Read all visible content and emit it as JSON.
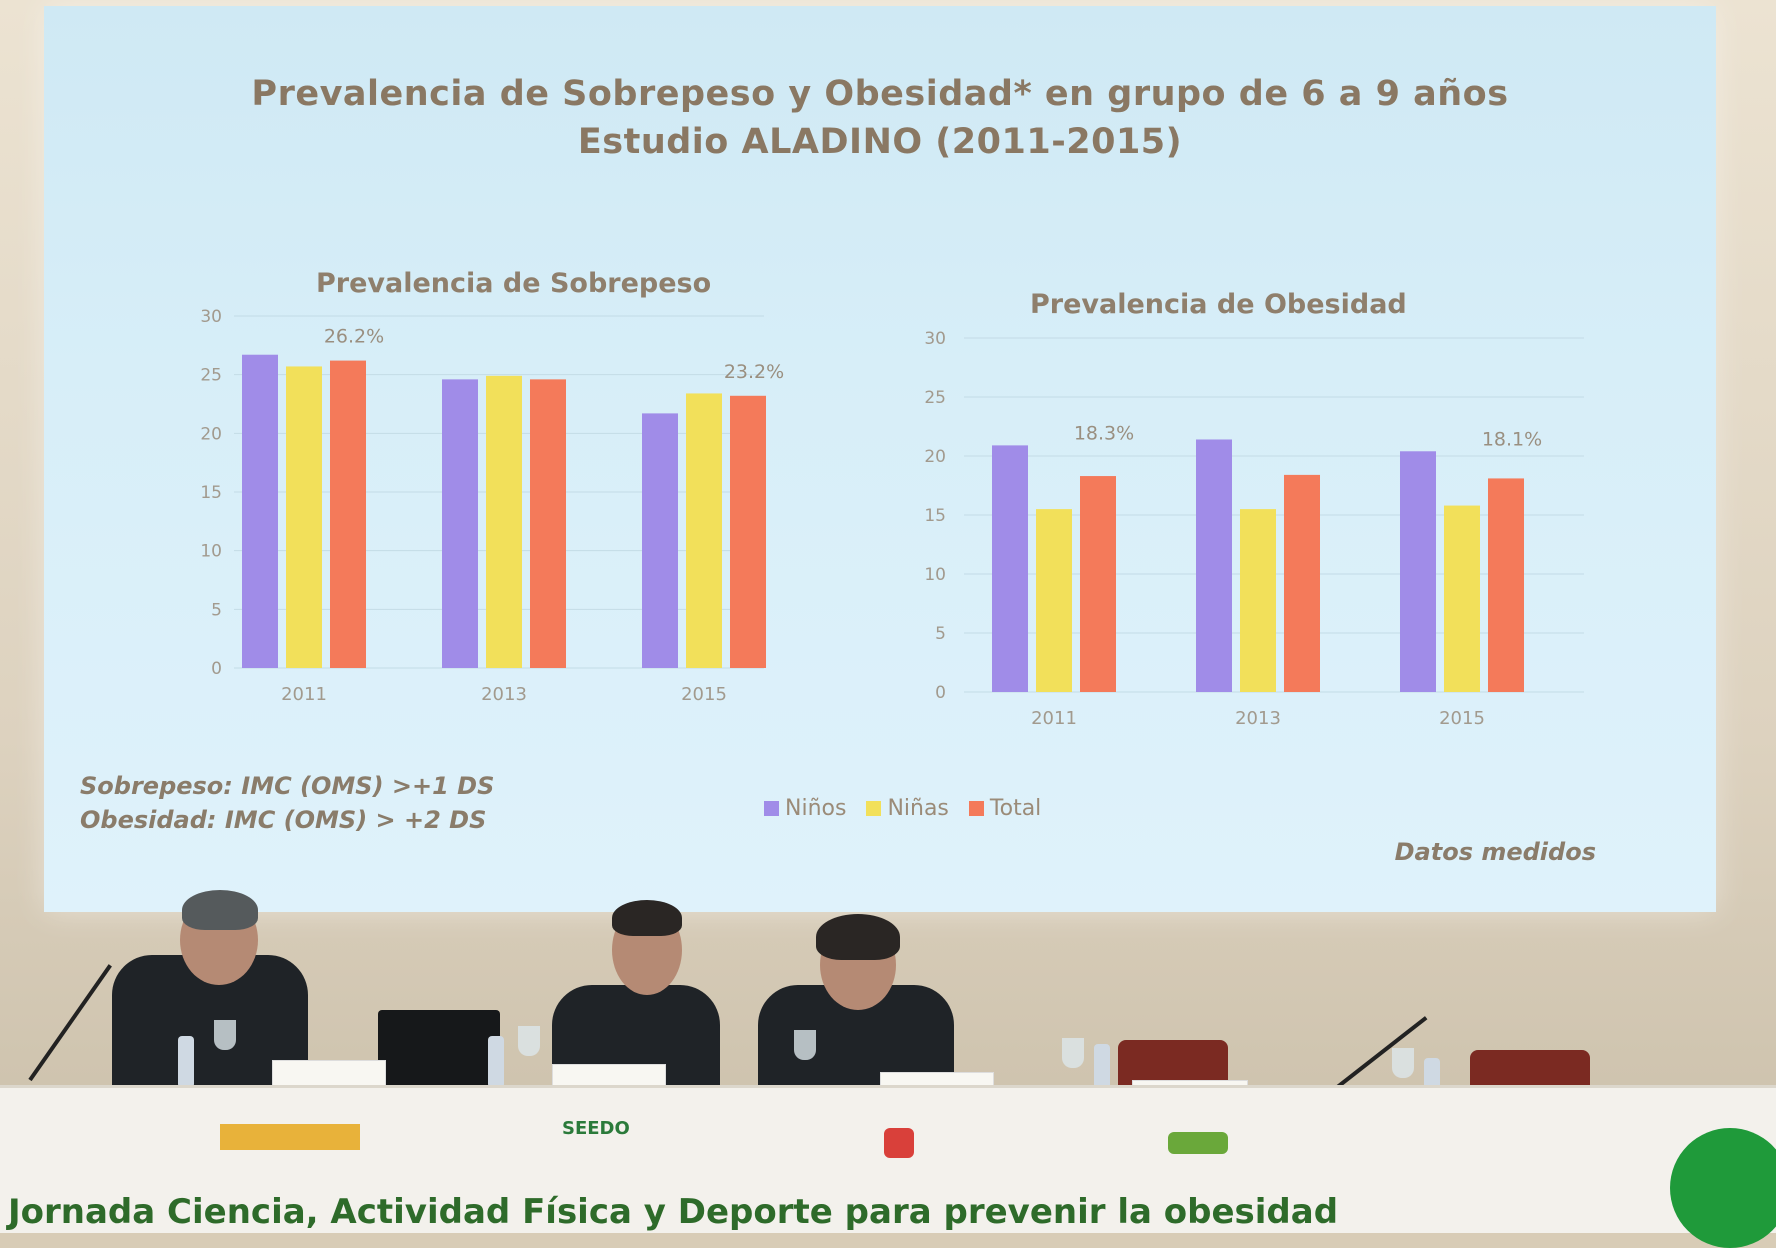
{
  "slide": {
    "title_line1": "Prevalencia de Sobrepeso y Obesidad* en grupo de 6 a 9 años",
    "title_line2": "Estudio ALADINO (2011-2015)",
    "note_line1": "Sobrepeso: IMC (OMS) >+1 DS",
    "note_line2": "Obesidad: IMC (OMS) > +2 DS",
    "source": "Datos medidos",
    "legend": [
      {
        "label": "Niños",
        "color": "#a08ce8"
      },
      {
        "label": "Niñas",
        "color": "#f2e05a"
      },
      {
        "label": "Total",
        "color": "#f47a5a"
      }
    ]
  },
  "chart_data": [
    {
      "type": "bar",
      "title": "Prevalencia de Sobrepeso",
      "categories": [
        "2011",
        "2013",
        "2015"
      ],
      "ylim": [
        0,
        30
      ],
      "yticks": [
        "0",
        "5",
        "10",
        "15",
        "20",
        "25",
        "30"
      ],
      "series": [
        {
          "name": "Niños",
          "values": [
            26.7,
            24.6,
            21.7
          ]
        },
        {
          "name": "Niñas",
          "values": [
            25.7,
            24.9,
            23.4
          ]
        },
        {
          "name": "Total",
          "values": [
            26.2,
            24.6,
            23.2
          ]
        }
      ],
      "data_labels": [
        {
          "category": "2011",
          "text": "26.2%"
        },
        {
          "category": "2015",
          "text": "23.2%"
        }
      ],
      "legend": "bottom"
    },
    {
      "type": "bar",
      "title": "Prevalencia de Obesidad",
      "categories": [
        "2011",
        "2013",
        "2015"
      ],
      "ylim": [
        0,
        30
      ],
      "yticks": [
        "0",
        "5",
        "10",
        "15",
        "20",
        "25",
        "30"
      ],
      "series": [
        {
          "name": "Niños",
          "values": [
            20.9,
            21.4,
            20.4
          ]
        },
        {
          "name": "Niñas",
          "values": [
            15.5,
            15.5,
            15.8
          ]
        },
        {
          "name": "Total",
          "values": [
            18.3,
            18.4,
            18.1
          ]
        }
      ],
      "data_labels": [
        {
          "category": "2011",
          "text": "18.3%"
        },
        {
          "category": "2015",
          "text": "18.1%"
        }
      ],
      "legend": "bottom"
    }
  ],
  "banner": "Jornada Ciencia, Actividad Física y Deporte para prevenir la obesidad",
  "logos": [
    "SEEDO"
  ]
}
